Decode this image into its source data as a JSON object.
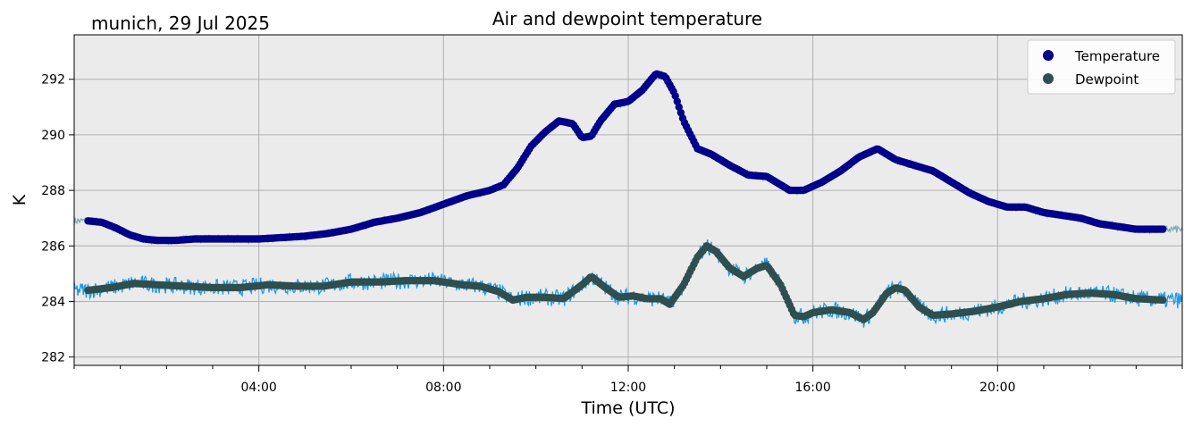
{
  "chart_data": {
    "type": "line",
    "title": "Air and dewpoint temperature",
    "subtitle": "munich, 29 Jul 2025",
    "xlabel": "Time (UTC)",
    "ylabel": "K",
    "xlim": [
      0,
      24
    ],
    "ylim": [
      281.7,
      293.6
    ],
    "x_ticks": [
      4,
      8,
      12,
      16,
      20
    ],
    "x_tick_labels": [
      "04:00",
      "08:00",
      "12:00",
      "16:00",
      "20:00"
    ],
    "y_ticks": [
      282,
      284,
      286,
      288,
      290,
      292
    ],
    "y_tick_labels": [
      "282",
      "284",
      "286",
      "288",
      "290",
      "292"
    ],
    "grid": true,
    "legend_position": "top-right",
    "colors": {
      "plot_bg": "#ebebeb",
      "grid": "#b0b0b0",
      "temperature": "#00008b",
      "temperature_raw": "#7aaeb0",
      "dewpoint": "#2f4f4f",
      "dewpoint_raw": "#1e9be8"
    },
    "series": [
      {
        "name": "Temperature",
        "style": "markers",
        "x": [
          0.3,
          0.6,
          0.9,
          1.2,
          1.5,
          1.8,
          2.2,
          2.6,
          3.0,
          3.5,
          4.0,
          4.5,
          5.0,
          5.5,
          6.0,
          6.5,
          7.0,
          7.5,
          8.0,
          8.5,
          9.0,
          9.3,
          9.6,
          9.9,
          10.2,
          10.5,
          10.8,
          11.0,
          11.2,
          11.4,
          11.7,
          12.0,
          12.3,
          12.6,
          12.8,
          13.0,
          13.2,
          13.5,
          13.8,
          14.2,
          14.6,
          15.0,
          15.2,
          15.5,
          15.8,
          16.2,
          16.6,
          17.0,
          17.4,
          17.8,
          18.2,
          18.6,
          19.0,
          19.4,
          19.8,
          20.2,
          20.6,
          21.0,
          21.4,
          21.8,
          22.2,
          22.6,
          23.0,
          23.6
        ],
        "y": [
          286.9,
          286.85,
          286.65,
          286.4,
          286.25,
          286.2,
          286.2,
          286.25,
          286.25,
          286.25,
          286.25,
          286.3,
          286.35,
          286.45,
          286.6,
          286.85,
          287.0,
          287.2,
          287.5,
          287.8,
          288.0,
          288.2,
          288.8,
          289.6,
          290.1,
          290.5,
          290.4,
          289.9,
          289.95,
          290.5,
          291.1,
          291.2,
          291.6,
          292.2,
          292.1,
          291.5,
          290.5,
          289.5,
          289.3,
          288.9,
          288.55,
          288.5,
          288.3,
          288.0,
          288.0,
          288.3,
          288.7,
          289.2,
          289.5,
          289.1,
          288.9,
          288.7,
          288.3,
          287.9,
          287.6,
          287.4,
          287.4,
          287.2,
          287.1,
          287.0,
          286.8,
          286.7,
          286.6,
          286.6
        ]
      },
      {
        "name": "Dewpoint",
        "style": "markers",
        "x": [
          0.3,
          0.8,
          1.3,
          1.8,
          2.4,
          3.0,
          3.6,
          4.2,
          4.8,
          5.4,
          6.0,
          6.6,
          7.2,
          7.8,
          8.4,
          8.8,
          9.2,
          9.5,
          9.8,
          10.2,
          10.6,
          11.0,
          11.2,
          11.5,
          11.8,
          12.1,
          12.4,
          12.7,
          12.9,
          13.2,
          13.5,
          13.7,
          13.9,
          14.2,
          14.5,
          14.8,
          15.0,
          15.3,
          15.6,
          15.8,
          16.0,
          16.4,
          16.8,
          17.1,
          17.3,
          17.6,
          17.8,
          18.0,
          18.3,
          18.6,
          19.0,
          19.5,
          20.0,
          20.5,
          21.0,
          21.5,
          22.0,
          22.5,
          23.0,
          23.6
        ],
        "y": [
          284.4,
          284.5,
          284.65,
          284.6,
          284.55,
          284.5,
          284.5,
          284.6,
          284.55,
          284.55,
          284.7,
          284.7,
          284.75,
          284.75,
          284.6,
          284.55,
          284.35,
          284.05,
          284.15,
          284.15,
          284.1,
          284.6,
          284.9,
          284.5,
          284.15,
          284.2,
          284.1,
          284.1,
          283.9,
          284.6,
          285.6,
          286.0,
          285.8,
          285.2,
          284.9,
          285.2,
          285.3,
          284.6,
          283.5,
          283.45,
          283.6,
          283.7,
          283.6,
          283.35,
          283.6,
          284.3,
          284.5,
          284.4,
          283.8,
          283.5,
          283.55,
          283.65,
          283.8,
          284.0,
          284.1,
          284.25,
          284.3,
          284.25,
          284.1,
          284.05
        ]
      }
    ]
  }
}
